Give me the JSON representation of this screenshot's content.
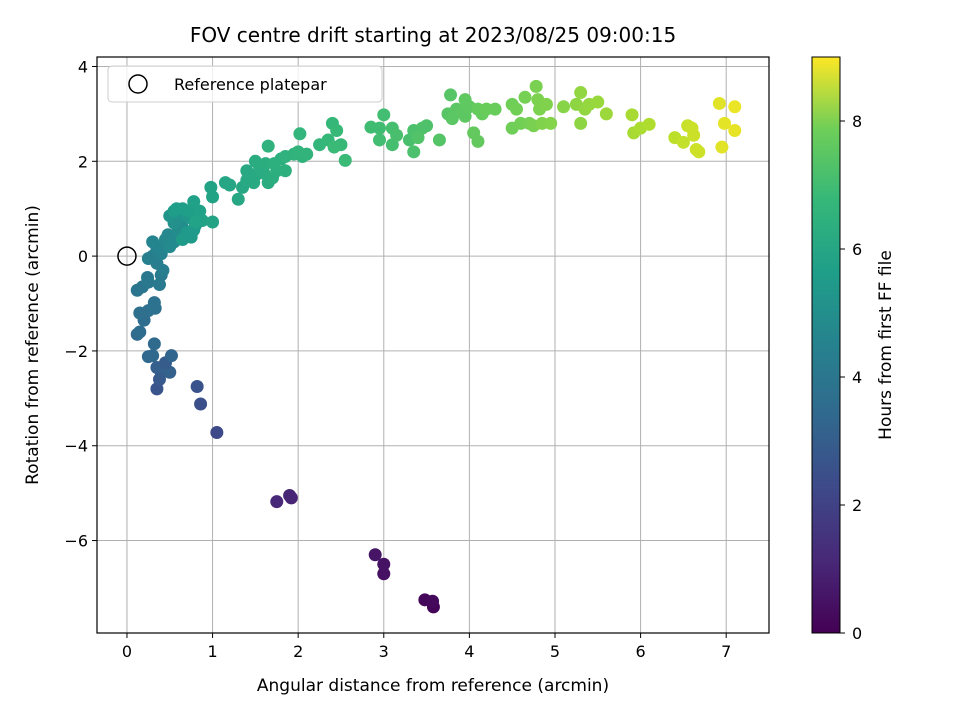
{
  "chart_data": {
    "type": "scatter",
    "title": "FOV centre drift starting at 2023/08/25 09:00:15",
    "xlabel": "Angular distance from reference (arcmin)",
    "ylabel": "Rotation from reference (arcmin)",
    "xlim": [
      -0.35,
      7.5
    ],
    "ylim": [
      -7.95,
      4.2
    ],
    "xticks": [
      0,
      1,
      2,
      3,
      4,
      5,
      6,
      7
    ],
    "yticks": [
      -6,
      -4,
      -2,
      0,
      2,
      4
    ],
    "grid": true,
    "colormap": "viridis",
    "colorbar": {
      "label": "Hours from first FF file",
      "range": [
        0,
        9
      ],
      "ticks": [
        0,
        2,
        4,
        6,
        8
      ]
    },
    "legend": {
      "position": "top-left",
      "entries": [
        {
          "label": "Reference platepar",
          "marker": "open-circle"
        }
      ]
    },
    "reference_point": {
      "x": 0,
      "y": 0
    },
    "points": [
      [
        3.58,
        -7.4,
        0.1
      ],
      [
        3.48,
        -7.25,
        0.15
      ],
      [
        3.57,
        -7.28,
        0.2
      ],
      [
        3.0,
        -6.7,
        0.4
      ],
      [
        3.0,
        -6.5,
        0.45
      ],
      [
        2.9,
        -6.3,
        0.5
      ],
      [
        1.92,
        -5.1,
        0.9
      ],
      [
        1.9,
        -5.05,
        0.95
      ],
      [
        1.75,
        -5.18,
        1.0
      ],
      [
        1.05,
        -3.72,
        2.0
      ],
      [
        0.86,
        -3.12,
        2.2
      ],
      [
        0.82,
        -2.75,
        2.3
      ],
      [
        0.35,
        -2.8,
        2.4
      ],
      [
        0.38,
        -2.6,
        2.5
      ],
      [
        0.4,
        -2.45,
        2.6
      ],
      [
        0.42,
        -2.35,
        2.7
      ],
      [
        0.5,
        -2.45,
        2.8
      ],
      [
        0.35,
        -2.35,
        2.7
      ],
      [
        0.45,
        -2.25,
        2.6
      ],
      [
        0.52,
        -2.1,
        2.9
      ],
      [
        0.3,
        -2.1,
        3.0
      ],
      [
        0.25,
        -2.12,
        3.0
      ],
      [
        0.32,
        -1.85,
        3.1
      ],
      [
        0.12,
        -1.65,
        3.1
      ],
      [
        0.15,
        -1.6,
        3.2
      ],
      [
        0.2,
        -1.35,
        3.2
      ],
      [
        0.15,
        -1.2,
        3.3
      ],
      [
        0.25,
        -1.15,
        3.3
      ],
      [
        0.33,
        -1.1,
        3.4
      ],
      [
        0.32,
        -0.98,
        3.4
      ],
      [
        0.12,
        -0.72,
        3.5
      ],
      [
        0.18,
        -0.65,
        3.5
      ],
      [
        0.25,
        -0.55,
        3.6
      ],
      [
        0.24,
        -0.45,
        3.6
      ],
      [
        0.38,
        -0.6,
        3.7
      ],
      [
        0.4,
        -0.4,
        3.7
      ],
      [
        0.42,
        -0.3,
        3.8
      ],
      [
        0.35,
        -0.15,
        3.8
      ],
      [
        0.25,
        -0.05,
        3.9
      ],
      [
        0.3,
        0.0,
        3.9
      ],
      [
        0.4,
        0.05,
        4.0
      ],
      [
        0.35,
        0.15,
        4.0
      ],
      [
        0.3,
        0.3,
        4.1
      ],
      [
        0.4,
        0.2,
        4.1
      ],
      [
        0.45,
        0.35,
        4.2
      ],
      [
        0.48,
        0.45,
        4.2
      ],
      [
        0.55,
        0.3,
        4.3
      ],
      [
        0.5,
        0.2,
        4.3
      ],
      [
        0.6,
        0.55,
        4.4
      ],
      [
        0.65,
        0.6,
        4.4
      ],
      [
        0.55,
        0.7,
        4.5
      ],
      [
        0.6,
        0.8,
        4.5
      ],
      [
        0.5,
        0.85,
        4.6
      ],
      [
        0.62,
        0.9,
        4.6
      ],
      [
        0.7,
        0.85,
        4.7
      ],
      [
        0.75,
        0.8,
        4.7
      ],
      [
        0.8,
        0.65,
        4.8
      ],
      [
        0.7,
        0.5,
        4.8
      ],
      [
        0.75,
        0.4,
        4.9
      ],
      [
        0.65,
        0.35,
        4.9
      ],
      [
        0.78,
        0.55,
        4.85
      ],
      [
        0.55,
        0.95,
        4.95
      ],
      [
        0.58,
        1.0,
        5.0
      ],
      [
        0.65,
        1.0,
        5.0
      ],
      [
        0.72,
        0.95,
        5.05
      ],
      [
        0.78,
        1.15,
        5.1
      ],
      [
        0.85,
        0.95,
        5.1
      ],
      [
        0.88,
        0.75,
        5.15
      ],
      [
        0.8,
        0.72,
        5.15
      ],
      [
        0.98,
        1.45,
        5.2
      ],
      [
        1.0,
        1.25,
        5.2
      ],
      [
        1.0,
        0.72,
        5.25
      ],
      [
        1.15,
        1.55,
        5.3
      ],
      [
        1.2,
        1.5,
        5.3
      ],
      [
        1.3,
        1.2,
        5.35
      ],
      [
        1.35,
        1.45,
        5.35
      ],
      [
        1.4,
        1.8,
        5.4
      ],
      [
        1.4,
        1.6,
        5.4
      ],
      [
        1.48,
        1.55,
        5.45
      ],
      [
        1.5,
        1.7,
        5.45
      ],
      [
        1.55,
        1.85,
        5.5
      ],
      [
        1.6,
        1.75,
        5.5
      ],
      [
        1.65,
        1.55,
        5.55
      ],
      [
        1.5,
        2.0,
        5.55
      ],
      [
        1.62,
        1.95,
        5.6
      ],
      [
        1.7,
        1.65,
        5.6
      ],
      [
        1.75,
        1.8,
        5.65
      ],
      [
        1.8,
        2.05,
        5.65
      ],
      [
        1.72,
        1.95,
        5.7
      ],
      [
        1.85,
        1.8,
        5.7
      ],
      [
        1.85,
        2.1,
        5.75
      ],
      [
        1.65,
        2.32,
        5.75
      ],
      [
        1.95,
        2.15,
        5.8
      ],
      [
        2.05,
        2.1,
        5.8
      ],
      [
        2.0,
        2.2,
        5.85
      ],
      [
        2.1,
        2.15,
        5.85
      ],
      [
        2.02,
        2.58,
        5.9
      ],
      [
        2.25,
        2.35,
        5.95
      ],
      [
        2.35,
        2.45,
        6.0
      ],
      [
        2.4,
        2.8,
        6.0
      ],
      [
        2.45,
        2.65,
        6.05
      ],
      [
        2.5,
        2.35,
        6.05
      ],
      [
        2.42,
        2.3,
        6.1
      ],
      [
        2.55,
        2.02,
        6.1
      ],
      [
        2.85,
        2.72,
        6.2
      ],
      [
        2.95,
        2.7,
        6.2
      ],
      [
        2.95,
        2.45,
        6.25
      ],
      [
        3.0,
        2.98,
        6.25
      ],
      [
        3.1,
        2.35,
        6.3
      ],
      [
        3.1,
        2.7,
        6.3
      ],
      [
        3.15,
        2.55,
        6.35
      ],
      [
        3.3,
        2.45,
        6.35
      ],
      [
        3.35,
        2.2,
        6.4
      ],
      [
        3.35,
        2.65,
        6.4
      ],
      [
        3.45,
        2.7,
        6.45
      ],
      [
        3.5,
        2.75,
        6.45
      ],
      [
        3.4,
        2.5,
        6.5
      ],
      [
        3.65,
        2.45,
        6.55
      ],
      [
        3.75,
        3.0,
        6.6
      ],
      [
        3.78,
        3.4,
        6.6
      ],
      [
        3.8,
        2.9,
        6.65
      ],
      [
        3.85,
        3.1,
        6.65
      ],
      [
        3.9,
        3.05,
        6.7
      ],
      [
        3.95,
        2.95,
        6.7
      ],
      [
        3.95,
        3.3,
        6.75
      ],
      [
        4.0,
        3.15,
        6.75
      ],
      [
        4.05,
        2.6,
        6.8
      ],
      [
        4.1,
        2.42,
        6.8
      ],
      [
        4.1,
        3.1,
        6.85
      ],
      [
        4.15,
        3.0,
        6.85
      ],
      [
        4.2,
        3.1,
        6.9
      ],
      [
        4.3,
        3.1,
        6.9
      ],
      [
        4.5,
        2.7,
        7.0
      ],
      [
        4.5,
        3.2,
        7.0
      ],
      [
        4.55,
        3.1,
        7.05
      ],
      [
        4.6,
        2.8,
        7.05
      ],
      [
        4.65,
        3.35,
        7.1
      ],
      [
        4.7,
        2.8,
        7.1
      ],
      [
        4.75,
        2.75,
        7.15
      ],
      [
        4.78,
        3.58,
        7.15
      ],
      [
        4.8,
        3.3,
        7.2
      ],
      [
        4.82,
        3.1,
        7.2
      ],
      [
        4.85,
        2.8,
        7.25
      ],
      [
        4.9,
        3.2,
        7.25
      ],
      [
        4.95,
        2.8,
        7.3
      ],
      [
        5.1,
        3.15,
        7.35
      ],
      [
        5.25,
        3.2,
        7.45
      ],
      [
        5.3,
        2.8,
        7.45
      ],
      [
        5.3,
        3.45,
        7.5
      ],
      [
        5.35,
        3.1,
        7.5
      ],
      [
        5.4,
        3.2,
        7.55
      ],
      [
        5.5,
        3.25,
        7.6
      ],
      [
        5.6,
        3.0,
        7.65
      ],
      [
        5.9,
        2.98,
        7.8
      ],
      [
        5.92,
        2.6,
        7.8
      ],
      [
        6.0,
        2.7,
        7.85
      ],
      [
        6.1,
        2.78,
        7.9
      ],
      [
        6.4,
        2.5,
        8.1
      ],
      [
        6.5,
        2.4,
        8.2
      ],
      [
        6.55,
        2.75,
        8.25
      ],
      [
        6.6,
        2.7,
        8.3
      ],
      [
        6.62,
        2.55,
        8.3
      ],
      [
        6.65,
        2.25,
        8.35
      ],
      [
        6.68,
        2.2,
        8.35
      ],
      [
        6.92,
        3.22,
        8.6
      ],
      [
        6.95,
        2.3,
        8.6
      ],
      [
        6.98,
        2.8,
        8.65
      ],
      [
        7.1,
        2.65,
        8.7
      ],
      [
        7.1,
        3.15,
        8.75
      ]
    ]
  }
}
